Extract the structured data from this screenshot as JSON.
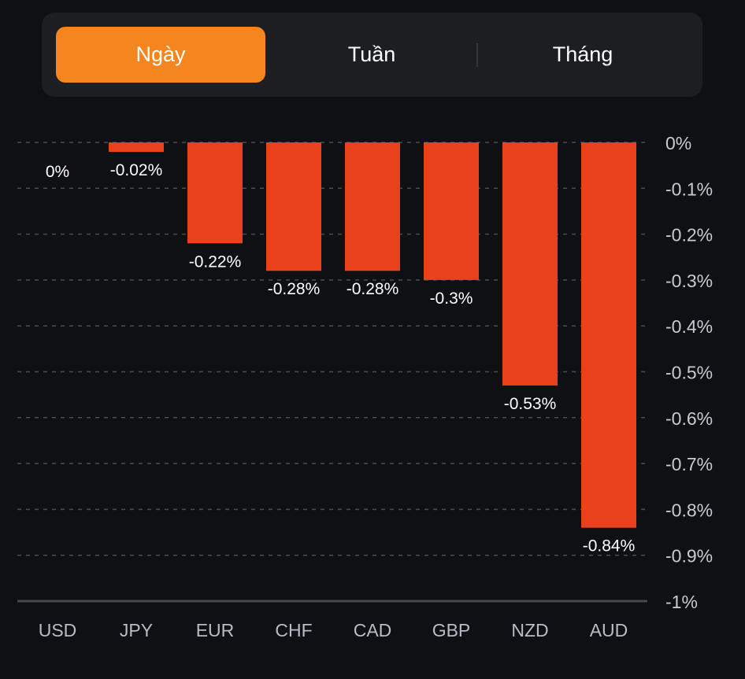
{
  "tabs": [
    {
      "label": "Ngày",
      "active": true
    },
    {
      "label": "Tuần",
      "active": false
    },
    {
      "label": "Tháng",
      "active": false
    }
  ],
  "colors": {
    "accent": "#f5851f",
    "bar": "#e8411c",
    "background": "#0f1013"
  },
  "chart_data": {
    "type": "bar",
    "title": "",
    "xlabel": "",
    "ylabel": "",
    "categories": [
      "USD",
      "JPY",
      "EUR",
      "CHF",
      "CAD",
      "GBP",
      "NZD",
      "AUD"
    ],
    "values": [
      0,
      -0.02,
      -0.22,
      -0.28,
      -0.28,
      -0.3,
      -0.53,
      -0.84
    ],
    "data_labels": [
      "0%",
      "-0.02%",
      "-0.22%",
      "-0.28%",
      "-0.28%",
      "-0.3%",
      "-0.53%",
      "-0.84%"
    ],
    "unit": "%",
    "ylim": [
      -1,
      0
    ],
    "yticks": [
      0,
      -0.1,
      -0.2,
      -0.3,
      -0.4,
      -0.5,
      -0.6,
      -0.7,
      -0.8,
      -0.9,
      -1
    ],
    "ytick_labels": [
      "0%",
      "-0.1%",
      "-0.2%",
      "-0.3%",
      "-0.4%",
      "-0.5%",
      "-0.6%",
      "-0.7%",
      "-0.8%",
      "-0.9%",
      "-1%"
    ],
    "grid": true,
    "y_axis_position": "right"
  }
}
